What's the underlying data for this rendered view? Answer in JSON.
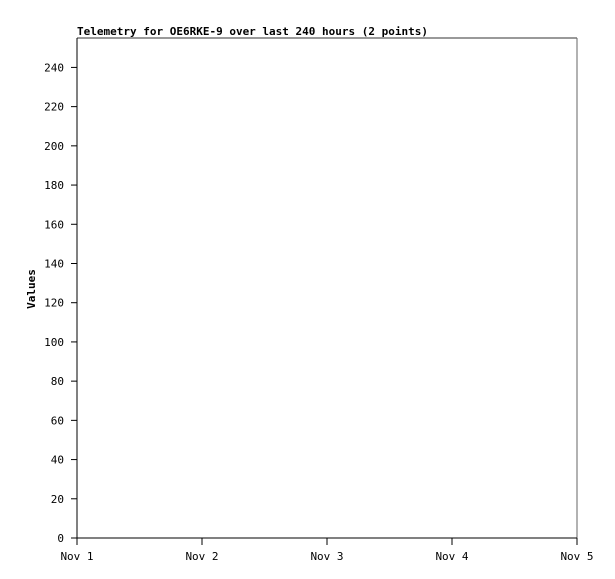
{
  "chart_data": {
    "type": "line",
    "title": "Telemetry for OE6RKE-9 over last 240 hours (2 points)",
    "xlabel": "",
    "ylabel": "Values",
    "x_ticks": [
      "Nov 1",
      "Nov 2",
      "Nov 3",
      "Nov 4",
      "Nov 5"
    ],
    "y_ticks": [
      0,
      20,
      40,
      60,
      80,
      100,
      120,
      140,
      160,
      180,
      200,
      220,
      240
    ],
    "ylim": [
      0,
      255
    ],
    "grid": false,
    "series": []
  }
}
